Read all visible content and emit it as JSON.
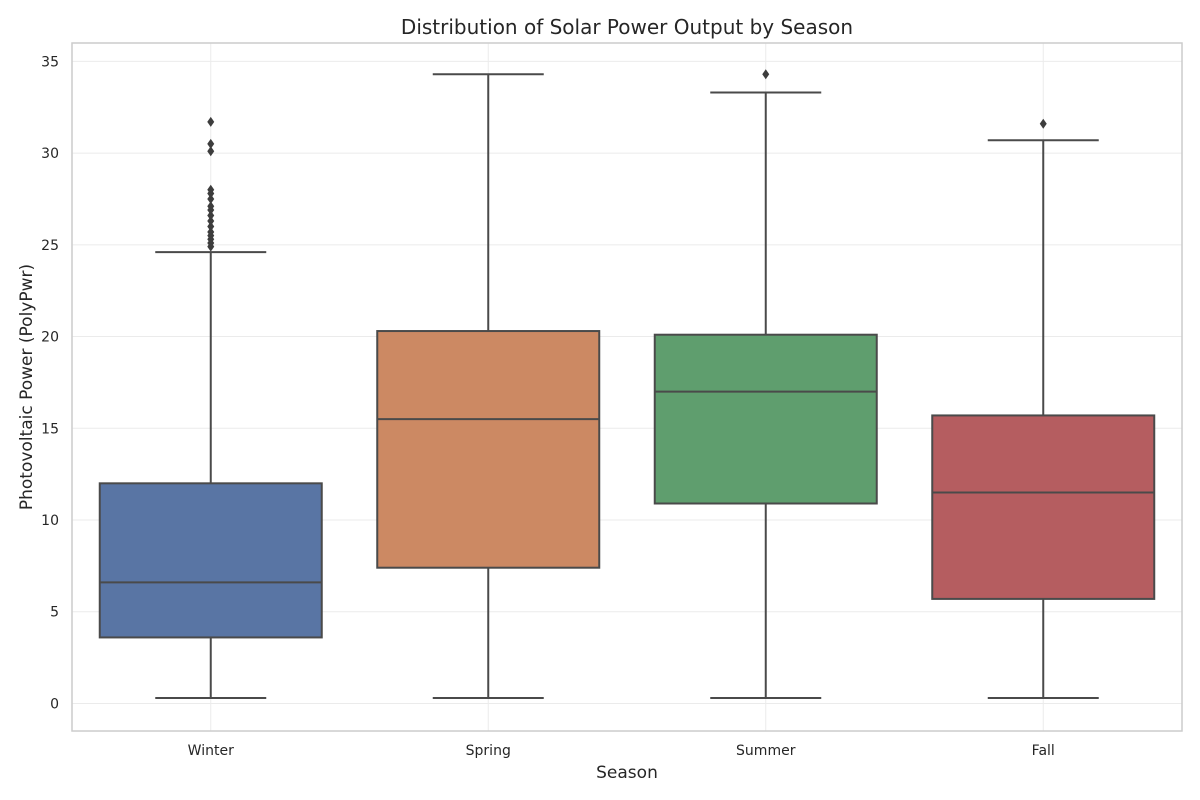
{
  "chart_data": {
    "type": "box",
    "title": "Distribution of Solar Power Output by Season",
    "xlabel": "Season",
    "ylabel": "Photovoltaic Power (PolyPwr)",
    "ylim": [
      -1.5,
      36
    ],
    "yticks": [
      0,
      5,
      10,
      15,
      20,
      25,
      30,
      35
    ],
    "ytick_labels": [
      "0",
      "5",
      "10",
      "15",
      "20",
      "25",
      "30",
      "35"
    ],
    "grid": true,
    "categories": [
      "Winter",
      "Spring",
      "Summer",
      "Fall"
    ],
    "boxes": [
      {
        "category": "Winter",
        "whisker_low": 0.3,
        "q1": 3.6,
        "median": 6.6,
        "q3": 12.0,
        "whisker_high": 24.6,
        "color": "#5975a4",
        "outliers": [
          24.9,
          25.1,
          25.3,
          25.5,
          25.7,
          26.0,
          26.3,
          26.6,
          26.9,
          27.1,
          27.5,
          27.8,
          28.0,
          30.1,
          30.5,
          31.7
        ]
      },
      {
        "category": "Spring",
        "whisker_low": 0.3,
        "q1": 7.4,
        "median": 15.5,
        "q3": 20.3,
        "whisker_high": 34.3,
        "color": "#cc8963",
        "outliers": []
      },
      {
        "category": "Summer",
        "whisker_low": 0.3,
        "q1": 10.9,
        "median": 17.0,
        "q3": 20.1,
        "whisker_high": 33.3,
        "color": "#5f9e6e",
        "outliers": [
          34.3
        ]
      },
      {
        "category": "Fall",
        "whisker_low": 0.3,
        "q1": 5.7,
        "median": 11.5,
        "q3": 15.7,
        "whisker_high": 30.7,
        "color": "#b55d60",
        "outliers": [
          31.6
        ]
      }
    ]
  }
}
